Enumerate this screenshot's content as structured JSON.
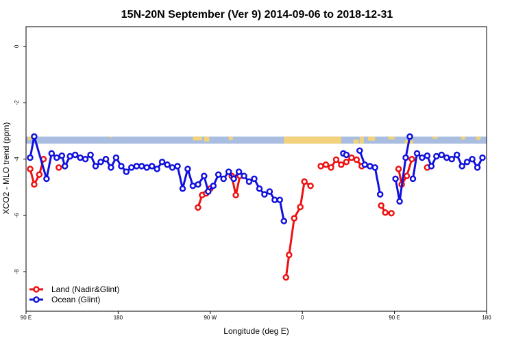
{
  "chart_data": {
    "type": "line",
    "title": "15N-20N September (Ver 9)   2014-09-06 to 2018-12-31",
    "xlabel": "Longitude (deg E)",
    "ylabel": "XCO2 - MLO trend (ppm)",
    "x_ticks": [
      {
        "value": 90,
        "label": "90 E"
      },
      {
        "value": 180,
        "label": "180"
      },
      {
        "value": 270,
        "label": "90 W"
      },
      {
        "value": 360,
        "label": "0"
      },
      {
        "value": 450,
        "label": "90 E"
      },
      {
        "value": 540,
        "label": "180"
      }
    ],
    "y_ticks": [
      {
        "value": 0,
        "label": "0"
      },
      {
        "value": -2,
        "label": "-2"
      },
      {
        "value": -4,
        "label": "-4"
      },
      {
        "value": -6,
        "label": "-6"
      },
      {
        "value": -8,
        "label": "-8"
      }
    ],
    "xlim": [
      90,
      540
    ],
    "ylim": [
      -9.4,
      0.7
    ],
    "grid": false,
    "legend_position": "bottom-left",
    "map_strip": {
      "y_top": -3.2,
      "y_bottom": -3.45,
      "ocean_color": "#a8bde0",
      "land_color": "#f2d37c"
    },
    "series": [
      {
        "name": "Land (Nadir&Glint)",
        "color": "#ee1111",
        "segments": [
          [
            [
              94,
              -4.35
            ],
            [
              98,
              -4.9
            ],
            [
              103,
              -4.55
            ],
            [
              107,
              -4.0
            ]
          ],
          [
            [
              122,
              -4.3
            ]
          ],
          [
            [
              258,
              -5.72
            ],
            [
              262,
              -5.28
            ],
            [
              266,
              -5.22
            ],
            [
              270,
              -5.05
            ]
          ],
          [
            [
              291,
              -4.6
            ],
            [
              295,
              -5.28
            ],
            [
              299,
              -4.6
            ]
          ],
          [
            [
              344,
              -8.2
            ],
            [
              347,
              -7.4
            ],
            [
              352,
              -6.1
            ],
            [
              358,
              -5.7
            ],
            [
              362,
              -4.8
            ],
            [
              368,
              -4.95
            ]
          ],
          [
            [
              378,
              -4.25
            ],
            [
              383,
              -4.2
            ],
            [
              388,
              -4.3
            ],
            [
              393,
              -4.02
            ],
            [
              398,
              -4.2
            ],
            [
              403,
              -4.1
            ],
            [
              408,
              -3.95
            ],
            [
              413,
              -4.02
            ],
            [
              418,
              -4.25
            ]
          ],
          [
            [
              437,
              -5.65
            ],
            [
              441,
              -5.9
            ],
            [
              447,
              -5.92
            ]
          ],
          [
            [
              454,
              -4.35
            ],
            [
              457,
              -4.9
            ],
            [
              462,
              -4.6
            ],
            [
              467,
              -4.0
            ]
          ],
          [
            [
              482,
              -4.3
            ]
          ]
        ]
      },
      {
        "name": "Ocean (Glint)",
        "color": "#1111dd",
        "segments": [
          [
            [
              94,
              -3.95
            ],
            [
              98,
              -3.2
            ],
            [
              110,
              -4.7
            ],
            [
              115,
              -3.8
            ],
            [
              120,
              -3.95
            ],
            [
              125,
              -3.88
            ],
            [
              128,
              -4.25
            ],
            [
              133,
              -3.9
            ],
            [
              138,
              -3.85
            ],
            [
              143,
              -3.95
            ],
            [
              148,
              -4.0
            ],
            [
              153,
              -3.85
            ],
            [
              158,
              -4.25
            ],
            [
              163,
              -4.1
            ],
            [
              168,
              -4.0
            ],
            [
              173,
              -4.3
            ],
            [
              178,
              -3.95
            ],
            [
              183,
              -4.25
            ],
            [
              188,
              -4.45
            ],
            [
              193,
              -4.3
            ],
            [
              198,
              -4.25
            ],
            [
              203,
              -4.25
            ],
            [
              208,
              -4.3
            ],
            [
              213,
              -4.25
            ],
            [
              218,
              -4.35
            ],
            [
              223,
              -4.1
            ],
            [
              228,
              -4.2
            ],
            [
              233,
              -4.3
            ],
            [
              238,
              -4.25
            ],
            [
              243,
              -5.05
            ],
            [
              248,
              -4.35
            ],
            [
              253,
              -4.95
            ],
            [
              258,
              -4.9
            ],
            [
              264,
              -4.6
            ],
            [
              268,
              -5.15
            ],
            [
              273,
              -4.95
            ],
            [
              278,
              -4.55
            ],
            [
              283,
              -4.7
            ],
            [
              288,
              -4.45
            ],
            [
              293,
              -4.7
            ],
            [
              298,
              -4.45
            ],
            [
              303,
              -4.6
            ],
            [
              308,
              -4.8
            ],
            [
              313,
              -4.7
            ],
            [
              318,
              -5.05
            ],
            [
              323,
              -5.25
            ],
            [
              328,
              -5.15
            ],
            [
              333,
              -5.45
            ],
            [
              338,
              -5.45
            ],
            [
              342,
              -6.2
            ]
          ],
          [
            [
              400,
              -3.8
            ],
            [
              403,
              -3.85
            ]
          ],
          [
            [
              416,
              -3.7
            ],
            [
              421,
              -4.2
            ],
            [
              426,
              -4.25
            ],
            [
              431,
              -4.3
            ],
            [
              436,
              -5.25
            ]
          ],
          [
            [
              451,
              -4.7
            ],
            [
              455,
              -5.5
            ],
            [
              461,
              -3.95
            ],
            [
              465,
              -3.2
            ]
          ],
          [
            [
              468,
              -4.7
            ],
            [
              472,
              -3.8
            ],
            [
              477,
              -3.95
            ],
            [
              482,
              -3.88
            ],
            [
              486,
              -4.25
            ],
            [
              491,
              -3.9
            ],
            [
              496,
              -3.85
            ],
            [
              501,
              -3.95
            ],
            [
              506,
              -4.0
            ],
            [
              511,
              -3.85
            ],
            [
              516,
              -4.25
            ],
            [
              521,
              -4.1
            ],
            [
              526,
              -4.0
            ],
            [
              531,
              -4.3
            ],
            [
              536,
              -3.95
            ]
          ]
        ]
      }
    ]
  }
}
